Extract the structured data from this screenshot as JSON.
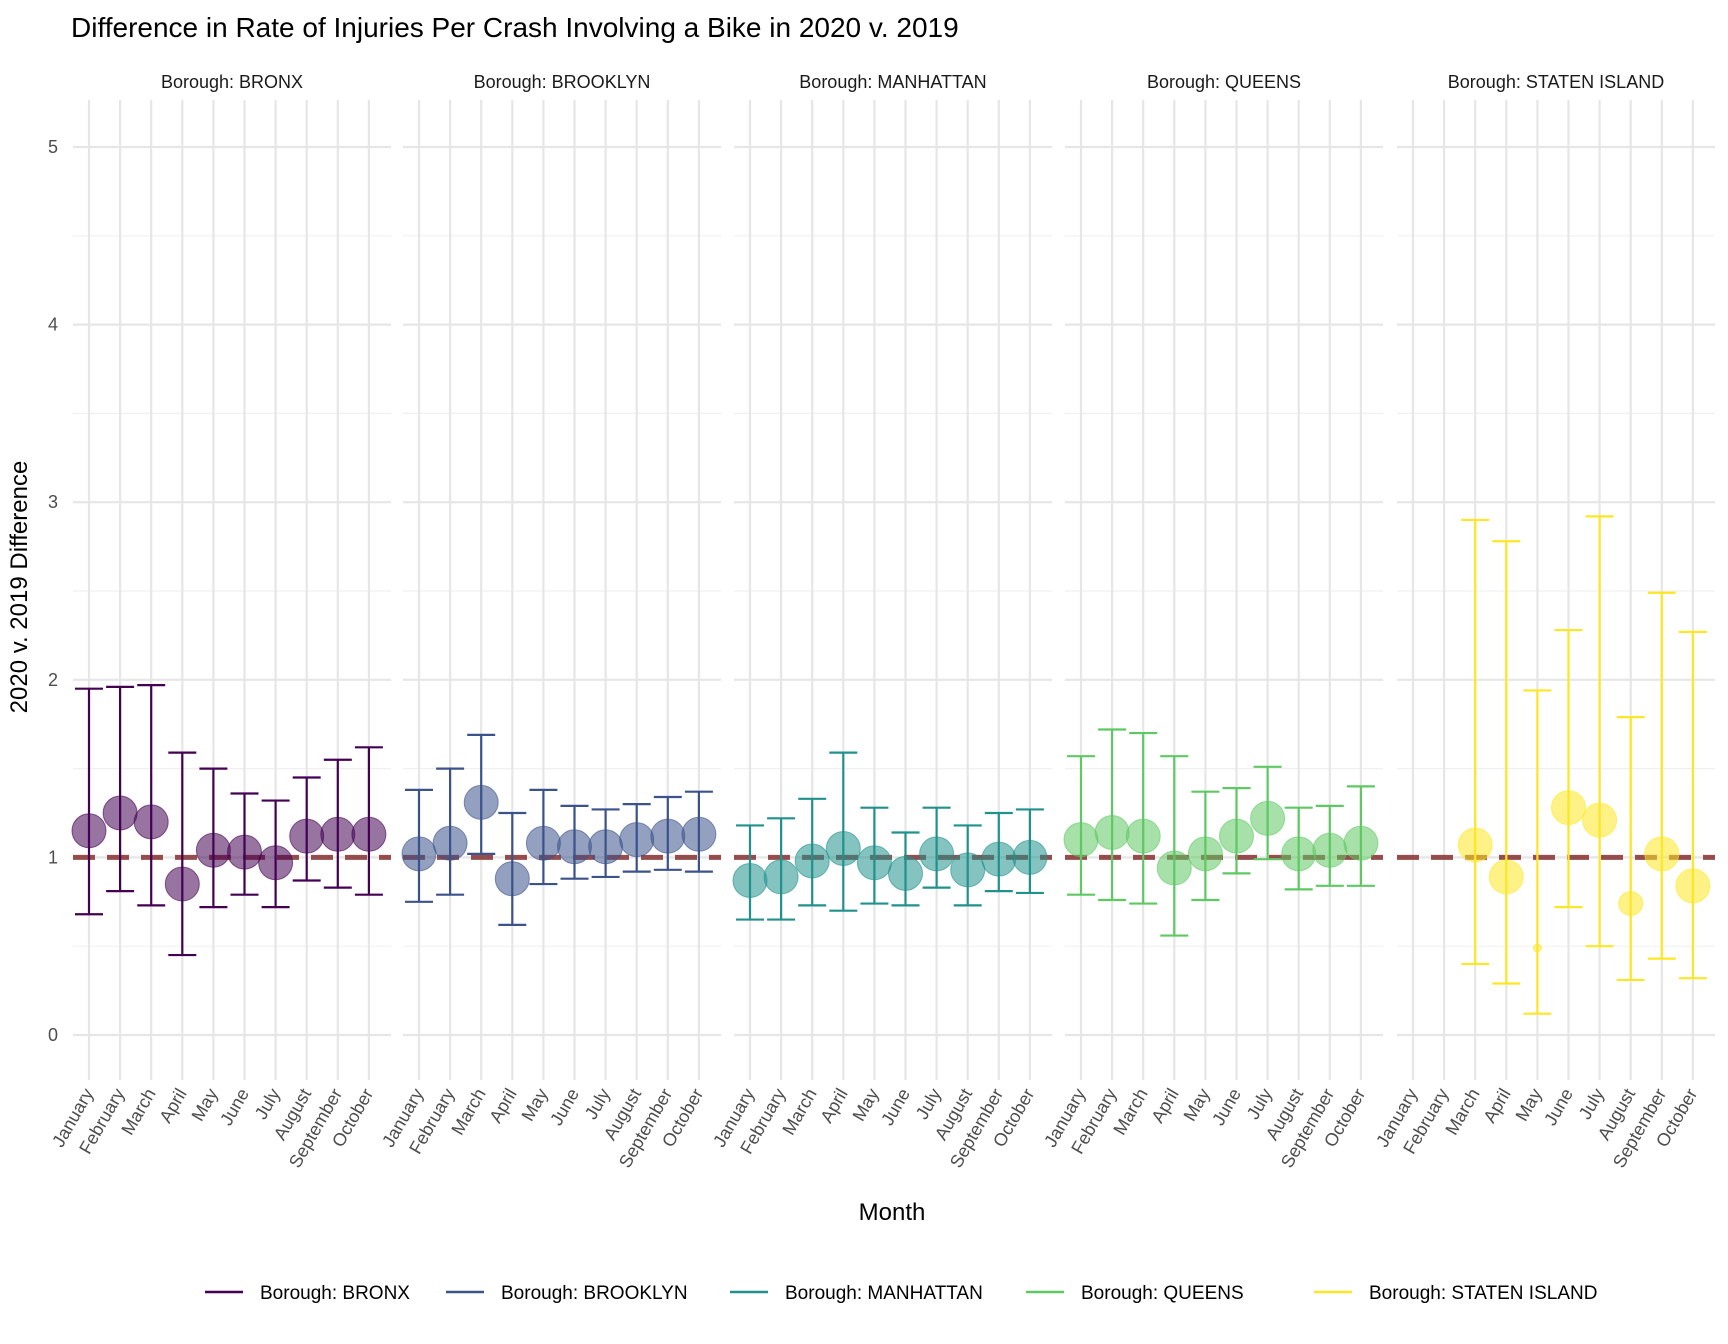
{
  "chart_data": {
    "type": "scatter",
    "title": "Difference in Rate of Injuries Per Crash Involving a Bike in 2020 v. 2019",
    "xlabel": "Month",
    "ylabel": "2020 v. 2019 Difference",
    "ylim": [
      -0.25,
      5.25
    ],
    "yticks": [
      0,
      1,
      2,
      3,
      4,
      5
    ],
    "reference_line": 1,
    "reference_color": "#8b3a3a",
    "grid": true,
    "legend_position": "bottom",
    "months": [
      "January",
      "February",
      "March",
      "April",
      "May",
      "June",
      "July",
      "August",
      "September",
      "October"
    ],
    "panels": [
      {
        "strip": "Borough: BRONX",
        "legend": "Borough: BRONX",
        "color": "#440154",
        "points": [
          {
            "month": "January",
            "value": 1.15,
            "low": 0.68,
            "high": 1.95
          },
          {
            "month": "February",
            "value": 1.25,
            "low": 0.81,
            "high": 1.96
          },
          {
            "month": "March",
            "value": 1.2,
            "low": 0.73,
            "high": 1.97
          },
          {
            "month": "April",
            "value": 0.85,
            "low": 0.45,
            "high": 1.59
          },
          {
            "month": "May",
            "value": 1.04,
            "low": 0.72,
            "high": 1.5
          },
          {
            "month": "June",
            "value": 1.03,
            "low": 0.79,
            "high": 1.36
          },
          {
            "month": "July",
            "value": 0.97,
            "low": 0.72,
            "high": 1.32
          },
          {
            "month": "August",
            "value": 1.12,
            "low": 0.87,
            "high": 1.45
          },
          {
            "month": "September",
            "value": 1.13,
            "low": 0.83,
            "high": 1.55
          },
          {
            "month": "October",
            "value": 1.13,
            "low": 0.79,
            "high": 1.62
          }
        ]
      },
      {
        "strip": "Borough: BROOKLYN",
        "legend": "Borough: BROOKLYN",
        "color": "#3b528b",
        "points": [
          {
            "month": "January",
            "value": 1.02,
            "low": 0.75,
            "high": 1.38
          },
          {
            "month": "February",
            "value": 1.08,
            "low": 0.79,
            "high": 1.5
          },
          {
            "month": "March",
            "value": 1.31,
            "low": 1.02,
            "high": 1.69
          },
          {
            "month": "April",
            "value": 0.88,
            "low": 0.62,
            "high": 1.25
          },
          {
            "month": "May",
            "value": 1.08,
            "low": 0.85,
            "high": 1.38
          },
          {
            "month": "June",
            "value": 1.06,
            "low": 0.88,
            "high": 1.29
          },
          {
            "month": "July",
            "value": 1.06,
            "low": 0.89,
            "high": 1.27
          },
          {
            "month": "August",
            "value": 1.1,
            "low": 0.92,
            "high": 1.3
          },
          {
            "month": "September",
            "value": 1.12,
            "low": 0.93,
            "high": 1.34
          },
          {
            "month": "October",
            "value": 1.13,
            "low": 0.92,
            "high": 1.37
          }
        ]
      },
      {
        "strip": "Borough: MANHATTAN",
        "legend": "Borough: MANHATTAN",
        "color": "#21918c",
        "points": [
          {
            "month": "January",
            "value": 0.87,
            "low": 0.65,
            "high": 1.18
          },
          {
            "month": "February",
            "value": 0.89,
            "low": 0.65,
            "high": 1.22
          },
          {
            "month": "March",
            "value": 0.98,
            "low": 0.73,
            "high": 1.33
          },
          {
            "month": "April",
            "value": 1.05,
            "low": 0.7,
            "high": 1.59
          },
          {
            "month": "May",
            "value": 0.97,
            "low": 0.74,
            "high": 1.28
          },
          {
            "month": "June",
            "value": 0.91,
            "low": 0.73,
            "high": 1.14
          },
          {
            "month": "July",
            "value": 1.02,
            "low": 0.83,
            "high": 1.28
          },
          {
            "month": "August",
            "value": 0.93,
            "low": 0.73,
            "high": 1.18
          },
          {
            "month": "September",
            "value": 0.99,
            "low": 0.81,
            "high": 1.25
          },
          {
            "month": "October",
            "value": 1.0,
            "low": 0.8,
            "high": 1.27
          }
        ]
      },
      {
        "strip": "Borough: QUEENS",
        "legend": "Borough: QUEENS",
        "color": "#5ec962",
        "points": [
          {
            "month": "January",
            "value": 1.1,
            "low": 0.79,
            "high": 1.57
          },
          {
            "month": "February",
            "value": 1.14,
            "low": 0.76,
            "high": 1.72
          },
          {
            "month": "March",
            "value": 1.12,
            "low": 0.74,
            "high": 1.7
          },
          {
            "month": "April",
            "value": 0.94,
            "low": 0.56,
            "high": 1.57
          },
          {
            "month": "May",
            "value": 1.02,
            "low": 0.76,
            "high": 1.37
          },
          {
            "month": "June",
            "value": 1.12,
            "low": 0.91,
            "high": 1.39
          },
          {
            "month": "July",
            "value": 1.22,
            "low": 0.99,
            "high": 1.51
          },
          {
            "month": "August",
            "value": 1.02,
            "low": 0.82,
            "high": 1.28
          },
          {
            "month": "September",
            "value": 1.04,
            "low": 0.84,
            "high": 1.29
          },
          {
            "month": "October",
            "value": 1.08,
            "low": 0.84,
            "high": 1.4
          }
        ]
      },
      {
        "strip": "Borough: STATEN ISLAND",
        "legend": "Borough: STATEN ISLAND",
        "color": "#fde725",
        "points": [
          {
            "month": "March",
            "value": 1.07,
            "low": 0.4,
            "high": 2.9
          },
          {
            "month": "April",
            "value": 0.89,
            "low": 0.29,
            "high": 2.78
          },
          {
            "month": "May",
            "value": 0.49,
            "low": 0.12,
            "high": 1.94
          },
          {
            "month": "June",
            "value": 1.28,
            "low": 0.72,
            "high": 2.28
          },
          {
            "month": "July",
            "value": 1.21,
            "low": 0.5,
            "high": 2.92
          },
          {
            "month": "August",
            "value": 0.74,
            "low": 0.31,
            "high": 1.79
          },
          {
            "month": "September",
            "value": 1.02,
            "low": 0.43,
            "high": 2.49
          },
          {
            "month": "October",
            "value": 0.84,
            "low": 0.32,
            "high": 2.27
          }
        ]
      }
    ]
  }
}
